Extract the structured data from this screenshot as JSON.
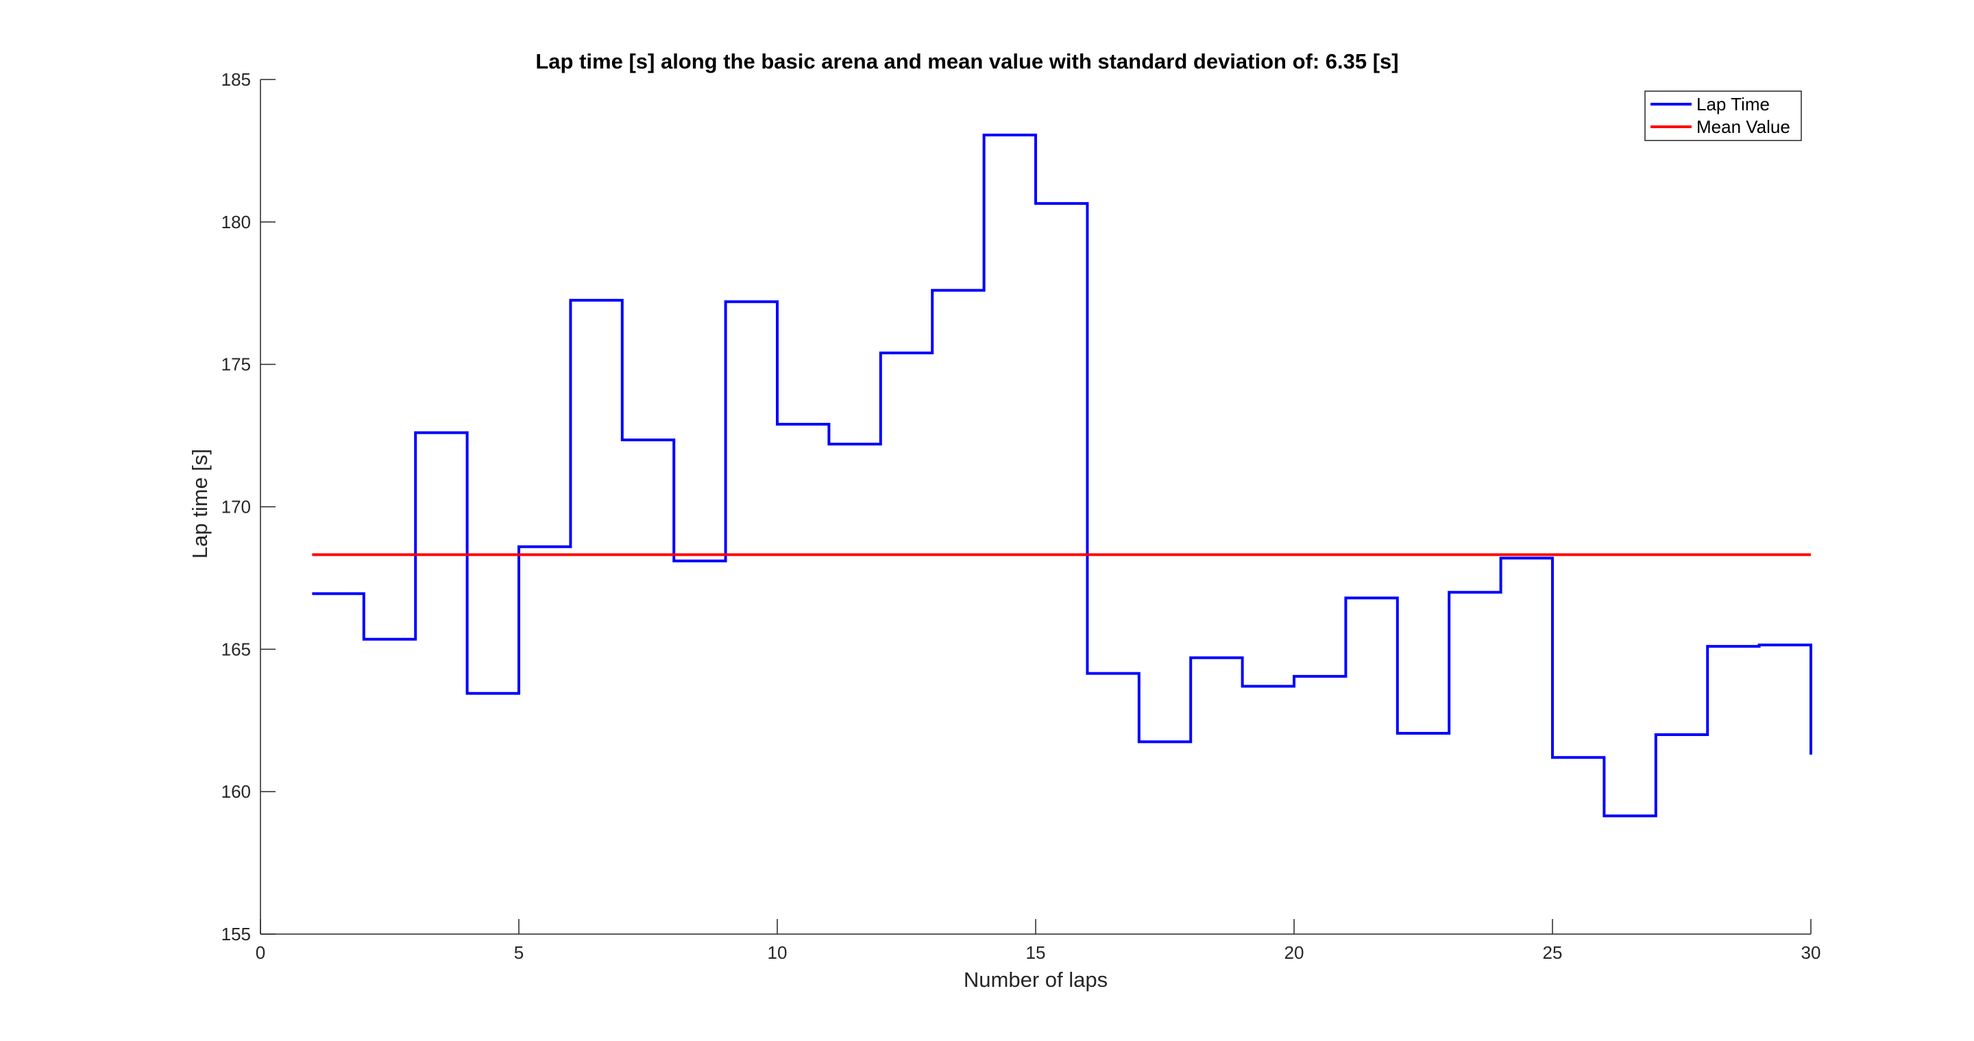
{
  "chart_data": {
    "type": "line",
    "title": "Lap time [s] along the basic arena and mean value with standard deviation of: 6.35 [s]",
    "xlabel": "Number of laps",
    "ylabel": "Lap time [s]",
    "xlim": [
      0,
      30
    ],
    "ylim": [
      155,
      185
    ],
    "xticks": [
      0,
      5,
      10,
      15,
      20,
      25,
      30
    ],
    "yticks": [
      155,
      160,
      165,
      170,
      175,
      180,
      185
    ],
    "grid": false,
    "legend_position": "top-right",
    "series": [
      {
        "name": "Lap Time",
        "style": "stairs",
        "color": "#0000ff",
        "x": [
          1,
          2,
          3,
          4,
          5,
          6,
          7,
          8,
          9,
          10,
          11,
          12,
          13,
          14,
          15,
          16,
          17,
          18,
          19,
          20,
          21,
          22,
          23,
          24,
          25,
          26,
          27,
          28,
          29,
          30
        ],
        "values": [
          166.95,
          165.35,
          172.6,
          163.45,
          168.6,
          177.25,
          172.35,
          168.1,
          177.2,
          172.9,
          172.2,
          175.4,
          177.6,
          183.05,
          180.65,
          164.15,
          161.75,
          164.7,
          163.7,
          164.05,
          166.8,
          162.05,
          167.0,
          168.2,
          161.2,
          159.15,
          162.0,
          165.1,
          165.15,
          161.3
        ]
      },
      {
        "name": "Mean Value",
        "style": "line",
        "color": "#ff0000",
        "x": [
          1,
          30
        ],
        "values": [
          168.32,
          168.32
        ]
      }
    ]
  }
}
